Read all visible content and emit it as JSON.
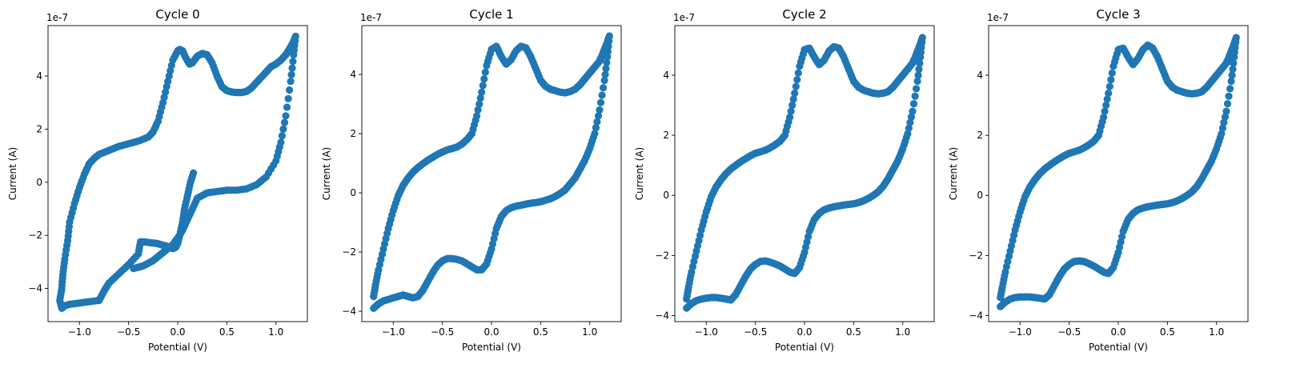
{
  "chart_data": [
    {
      "type": "scatter",
      "title": "Cycle 0",
      "xlabel": "Potential (V)",
      "ylabel": "Current (A)",
      "y_multiplier": "1e-7",
      "xlim": [
        -1.32,
        1.32
      ],
      "ylim": [
        -5.25,
        5.9
      ],
      "xticks": [
        -1.0,
        -0.5,
        0.0,
        0.5,
        1.0
      ],
      "xtick_labels": [
        "−1.0",
        "−0.5",
        "0.0",
        "0.5",
        "1.0"
      ],
      "yticks": [
        -4,
        -2,
        0,
        2,
        4
      ],
      "ytick_labels": [
        "−4",
        "−2",
        "0",
        "2",
        "4"
      ],
      "color": "#1f77b4",
      "grid": false,
      "series": [
        {
          "x": [
            0.16,
            0.13,
            0.1,
            0.07,
            0.05,
            0.02,
            0.0,
            -0.02,
            -0.05,
            -0.08,
            -0.12,
            -0.17,
            -0.22,
            -0.28,
            -0.33,
            -0.38,
            -0.4,
            -0.5,
            -0.6,
            -0.7,
            -0.75,
            -0.8,
            -0.9,
            -1.0,
            -1.1,
            -1.15,
            -1.18,
            -1.2,
            -1.18,
            -1.17,
            -1.15,
            -1.12,
            -1.1,
            -1.05,
            -1.0,
            -0.95,
            -0.9,
            -0.85,
            -0.8,
            -0.7,
            -0.6,
            -0.5,
            -0.4,
            -0.3,
            -0.25,
            -0.2,
            -0.15,
            -0.1,
            -0.05,
            0.0,
            0.02,
            0.05,
            0.08,
            0.12,
            0.15,
            0.2,
            0.25,
            0.3,
            0.35,
            0.4,
            0.45,
            0.5,
            0.55,
            0.6,
            0.65,
            0.7,
            0.75,
            0.8,
            0.85,
            0.9,
            0.95,
            1.0,
            1.05,
            1.1,
            1.15,
            1.18,
            1.2,
            1.18,
            1.15,
            1.1,
            1.05,
            1.0,
            0.9,
            0.8,
            0.7,
            0.6,
            0.5,
            0.4,
            0.3,
            0.2,
            0.15,
            0.1,
            0.05,
            0.0,
            -0.05,
            -0.1,
            -0.15,
            -0.2,
            -0.25,
            -0.3,
            -0.35,
            -0.4,
            -0.45
          ],
          "y": [
            0.35,
            0.0,
            -0.5,
            -1.0,
            -1.5,
            -2.0,
            -2.3,
            -2.45,
            -2.5,
            -2.45,
            -2.4,
            -2.35,
            -2.3,
            -2.28,
            -2.25,
            -2.25,
            -2.7,
            -3.1,
            -3.45,
            -3.8,
            -4.1,
            -4.45,
            -4.5,
            -4.55,
            -4.6,
            -4.65,
            -4.75,
            -4.45,
            -4.0,
            -3.5,
            -2.9,
            -2.2,
            -1.5,
            -0.8,
            -0.2,
            0.3,
            0.7,
            0.9,
            1.05,
            1.2,
            1.35,
            1.45,
            1.55,
            1.7,
            1.9,
            2.3,
            3.0,
            3.8,
            4.6,
            4.95,
            5.0,
            4.95,
            4.7,
            4.45,
            4.5,
            4.75,
            4.85,
            4.8,
            4.5,
            4.0,
            3.6,
            3.45,
            3.4,
            3.38,
            3.38,
            3.42,
            3.55,
            3.75,
            3.95,
            4.15,
            4.35,
            4.45,
            4.6,
            4.8,
            5.1,
            5.3,
            5.5,
            4.8,
            3.8,
            2.5,
            1.5,
            0.8,
            0.2,
            -0.1,
            -0.25,
            -0.3,
            -0.3,
            -0.35,
            -0.4,
            -0.6,
            -1.0,
            -1.4,
            -1.8,
            -2.1,
            -2.35,
            -2.5,
            -2.65,
            -2.8,
            -2.95,
            -3.05,
            -3.15,
            -3.2,
            -3.25
          ]
        }
      ]
    },
    {
      "type": "scatter",
      "title": "Cycle 1",
      "xlabel": "Potential (V)",
      "ylabel": "Current (A)",
      "y_multiplier": "1e-7",
      "xlim": [
        -1.32,
        1.32
      ],
      "ylim": [
        -4.35,
        5.65
      ],
      "xticks": [
        -1.0,
        -0.5,
        0.0,
        0.5,
        1.0
      ],
      "xtick_labels": [
        "−1.0",
        "−0.5",
        "0.0",
        "0.5",
        "1.0"
      ],
      "yticks": [
        -4,
        -2,
        0,
        2,
        4
      ],
      "ytick_labels": [
        "−4",
        "−2",
        "0",
        "2",
        "4"
      ],
      "color": "#1f77b4",
      "grid": false,
      "series": [
        {
          "x": [
            -1.2,
            -1.15,
            -1.1,
            -1.05,
            -1.0,
            -0.95,
            -0.9,
            -0.85,
            -0.8,
            -0.75,
            -0.7,
            -0.65,
            -0.6,
            -0.55,
            -0.5,
            -0.45,
            -0.4,
            -0.35,
            -0.3,
            -0.25,
            -0.2,
            -0.15,
            -0.1,
            -0.05,
            0.0,
            0.05,
            0.1,
            0.15,
            0.2,
            0.25,
            0.3,
            0.35,
            0.4,
            0.45,
            0.5,
            0.55,
            0.6,
            0.65,
            0.7,
            0.75,
            0.8,
            0.85,
            0.9,
            0.95,
            1.0,
            1.05,
            1.1,
            1.15,
            1.18,
            1.2,
            1.18,
            1.15,
            1.12,
            1.1,
            1.05,
            1.0,
            0.95,
            0.9,
            0.85,
            0.8,
            0.75,
            0.7,
            0.65,
            0.6,
            0.55,
            0.5,
            0.45,
            0.4,
            0.35,
            0.3,
            0.25,
            0.2,
            0.15,
            0.1,
            0.05,
            0.0,
            -0.05,
            -0.1,
            -0.15,
            -0.2,
            -0.25,
            -0.3,
            -0.35,
            -0.4,
            -0.45,
            -0.5,
            -0.55,
            -0.6,
            -0.65,
            -0.7,
            -0.75,
            -0.8,
            -0.85,
            -0.9,
            -0.95,
            -1.0,
            -1.05,
            -1.1,
            -1.15,
            -1.18,
            -1.2
          ],
          "y": [
            -3.9,
            -3.75,
            -3.65,
            -3.6,
            -3.55,
            -3.5,
            -3.45,
            -3.5,
            -3.55,
            -3.5,
            -3.3,
            -3.0,
            -2.7,
            -2.45,
            -2.3,
            -2.22,
            -2.22,
            -2.25,
            -2.3,
            -2.4,
            -2.5,
            -2.6,
            -2.6,
            -2.4,
            -1.9,
            -1.2,
            -0.8,
            -0.6,
            -0.5,
            -0.45,
            -0.42,
            -0.38,
            -0.35,
            -0.33,
            -0.3,
            -0.25,
            -0.2,
            -0.12,
            -0.02,
            0.1,
            0.3,
            0.5,
            0.8,
            1.1,
            1.5,
            2.0,
            2.8,
            3.8,
            4.6,
            5.3,
            5.1,
            4.85,
            4.6,
            4.45,
            4.25,
            4.05,
            3.85,
            3.65,
            3.5,
            3.42,
            3.38,
            3.4,
            3.45,
            3.5,
            3.6,
            3.8,
            4.2,
            4.6,
            4.9,
            4.95,
            4.8,
            4.5,
            4.35,
            4.6,
            4.95,
            4.85,
            4.3,
            3.4,
            2.6,
            2.0,
            1.8,
            1.65,
            1.55,
            1.5,
            1.45,
            1.38,
            1.3,
            1.2,
            1.1,
            0.98,
            0.85,
            0.7,
            0.5,
            0.25,
            -0.1,
            -0.6,
            -1.2,
            -1.9,
            -2.6,
            -3.1,
            -3.5
          ]
        }
      ]
    },
    {
      "type": "scatter",
      "title": "Cycle 2",
      "xlabel": "Potential (V)",
      "ylabel": "Current (A)",
      "y_multiplier": "1e-7",
      "xlim": [
        -1.32,
        1.32
      ],
      "ylim": [
        -4.2,
        5.65
      ],
      "xticks": [
        -1.0,
        -0.5,
        0.0,
        0.5,
        1.0
      ],
      "xtick_labels": [
        "−1.0",
        "−0.5",
        "0.0",
        "0.5",
        "1.0"
      ],
      "yticks": [
        -4,
        -2,
        0,
        2,
        4
      ],
      "ytick_labels": [
        "−4",
        "−2",
        "0",
        "2",
        "4"
      ],
      "color": "#1f77b4",
      "grid": false,
      "series": [
        {
          "x": [
            -1.2,
            -1.15,
            -1.1,
            -1.05,
            -1.0,
            -0.95,
            -0.9,
            -0.85,
            -0.8,
            -0.75,
            -0.7,
            -0.65,
            -0.6,
            -0.55,
            -0.5,
            -0.45,
            -0.4,
            -0.35,
            -0.3,
            -0.25,
            -0.2,
            -0.15,
            -0.1,
            -0.05,
            0.0,
            0.05,
            0.1,
            0.15,
            0.2,
            0.25,
            0.3,
            0.35,
            0.4,
            0.45,
            0.5,
            0.55,
            0.6,
            0.65,
            0.7,
            0.75,
            0.8,
            0.85,
            0.9,
            0.95,
            1.0,
            1.05,
            1.1,
            1.15,
            1.18,
            1.2,
            1.18,
            1.15,
            1.12,
            1.1,
            1.05,
            1.0,
            0.95,
            0.9,
            0.85,
            0.8,
            0.75,
            0.7,
            0.65,
            0.6,
            0.55,
            0.5,
            0.45,
            0.4,
            0.35,
            0.3,
            0.25,
            0.2,
            0.15,
            0.1,
            0.05,
            0.0,
            -0.05,
            -0.1,
            -0.15,
            -0.2,
            -0.25,
            -0.3,
            -0.35,
            -0.4,
            -0.45,
            -0.5,
            -0.55,
            -0.6,
            -0.65,
            -0.7,
            -0.75,
            -0.8,
            -0.85,
            -0.9,
            -0.95,
            -1.0,
            -1.05,
            -1.1,
            -1.15,
            -1.18,
            -1.2
          ],
          "y": [
            -3.75,
            -3.6,
            -3.5,
            -3.45,
            -3.42,
            -3.4,
            -3.4,
            -3.42,
            -3.45,
            -3.48,
            -3.3,
            -3.0,
            -2.7,
            -2.45,
            -2.3,
            -2.2,
            -2.18,
            -2.22,
            -2.28,
            -2.35,
            -2.45,
            -2.55,
            -2.6,
            -2.4,
            -1.9,
            -1.2,
            -0.8,
            -0.6,
            -0.48,
            -0.42,
            -0.38,
            -0.35,
            -0.32,
            -0.3,
            -0.28,
            -0.24,
            -0.18,
            -0.1,
            0.0,
            0.12,
            0.3,
            0.55,
            0.85,
            1.15,
            1.55,
            2.05,
            2.8,
            3.8,
            4.6,
            5.25,
            5.05,
            4.8,
            4.55,
            4.4,
            4.2,
            4.0,
            3.8,
            3.6,
            3.45,
            3.4,
            3.38,
            3.4,
            3.45,
            3.5,
            3.6,
            3.8,
            4.2,
            4.6,
            4.9,
            4.95,
            4.8,
            4.5,
            4.35,
            4.6,
            4.9,
            4.85,
            4.3,
            3.4,
            2.6,
            2.0,
            1.8,
            1.68,
            1.58,
            1.5,
            1.45,
            1.4,
            1.32,
            1.22,
            1.12,
            1.0,
            0.88,
            0.72,
            0.52,
            0.28,
            -0.05,
            -0.55,
            -1.15,
            -1.85,
            -2.55,
            -3.05,
            -3.45
          ]
        }
      ]
    },
    {
      "type": "scatter",
      "title": "Cycle 3",
      "xlabel": "Potential (V)",
      "ylabel": "Current (A)",
      "y_multiplier": "1e-7",
      "xlim": [
        -1.32,
        1.32
      ],
      "ylim": [
        -4.2,
        5.65
      ],
      "xticks": [
        -1.0,
        -0.5,
        0.0,
        0.5,
        1.0
      ],
      "xtick_labels": [
        "−1.0",
        "−0.5",
        "0.0",
        "0.5",
        "1.0"
      ],
      "yticks": [
        -4,
        -2,
        0,
        2,
        4
      ],
      "ytick_labels": [
        "−4",
        "−2",
        "0",
        "2",
        "4"
      ],
      "color": "#1f77b4",
      "grid": false,
      "series": [
        {
          "x": [
            -1.2,
            -1.15,
            -1.1,
            -1.05,
            -1.0,
            -0.95,
            -0.9,
            -0.85,
            -0.8,
            -0.75,
            -0.7,
            -0.65,
            -0.6,
            -0.55,
            -0.5,
            -0.45,
            -0.4,
            -0.35,
            -0.3,
            -0.25,
            -0.2,
            -0.15,
            -0.1,
            -0.05,
            0.0,
            0.05,
            0.1,
            0.15,
            0.2,
            0.25,
            0.3,
            0.35,
            0.4,
            0.45,
            0.5,
            0.55,
            0.6,
            0.65,
            0.7,
            0.75,
            0.8,
            0.85,
            0.9,
            0.95,
            1.0,
            1.05,
            1.1,
            1.15,
            1.18,
            1.2,
            1.18,
            1.15,
            1.12,
            1.1,
            1.05,
            1.0,
            0.95,
            0.9,
            0.85,
            0.8,
            0.75,
            0.7,
            0.65,
            0.6,
            0.55,
            0.5,
            0.45,
            0.4,
            0.35,
            0.3,
            0.25,
            0.2,
            0.15,
            0.1,
            0.05,
            0.0,
            -0.05,
            -0.1,
            -0.15,
            -0.2,
            -0.25,
            -0.3,
            -0.35,
            -0.4,
            -0.45,
            -0.5,
            -0.55,
            -0.6,
            -0.65,
            -0.7,
            -0.75,
            -0.8,
            -0.85,
            -0.9,
            -0.95,
            -1.0,
            -1.05,
            -1.1,
            -1.15,
            -1.18,
            -1.2
          ],
          "y": [
            -3.7,
            -3.55,
            -3.45,
            -3.4,
            -3.38,
            -3.38,
            -3.38,
            -3.4,
            -3.42,
            -3.45,
            -3.3,
            -3.0,
            -2.7,
            -2.45,
            -2.3,
            -2.2,
            -2.18,
            -2.2,
            -2.27,
            -2.35,
            -2.45,
            -2.55,
            -2.6,
            -2.4,
            -1.9,
            -1.2,
            -0.8,
            -0.6,
            -0.48,
            -0.42,
            -0.38,
            -0.35,
            -0.32,
            -0.3,
            -0.28,
            -0.24,
            -0.18,
            -0.1,
            0.0,
            0.12,
            0.3,
            0.55,
            0.85,
            1.15,
            1.55,
            2.05,
            2.8,
            3.8,
            4.6,
            5.25,
            5.05,
            4.8,
            4.55,
            4.4,
            4.2,
            4.0,
            3.8,
            3.6,
            3.45,
            3.4,
            3.38,
            3.4,
            3.45,
            3.5,
            3.6,
            3.8,
            4.2,
            4.6,
            4.9,
            5.0,
            4.85,
            4.55,
            4.35,
            4.6,
            4.9,
            4.85,
            4.3,
            3.4,
            2.6,
            2.0,
            1.8,
            1.68,
            1.58,
            1.5,
            1.45,
            1.4,
            1.32,
            1.22,
            1.12,
            1.0,
            0.88,
            0.72,
            0.52,
            0.28,
            -0.05,
            -0.55,
            -1.15,
            -1.85,
            -2.55,
            -3.05,
            -3.4
          ]
        }
      ]
    }
  ]
}
